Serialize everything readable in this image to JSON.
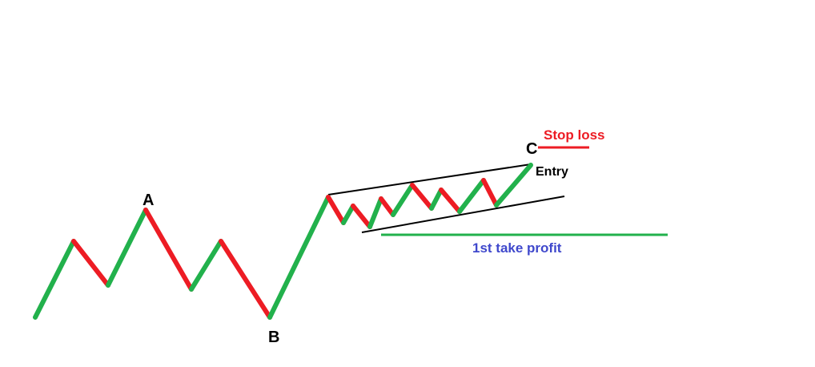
{
  "colors": {
    "up": "#22b14c",
    "down": "#ed1c24",
    "channel": "#000000",
    "stop_loss": "#ed1c24",
    "take_profit_line": "#22b14c",
    "take_profit_text": "#3f48cc"
  },
  "labels": {
    "point_a": "A",
    "point_b": "B",
    "point_c": "C",
    "entry": "Entry",
    "stop_loss": "Stop loss",
    "take_profit": "1st take profit"
  }
}
